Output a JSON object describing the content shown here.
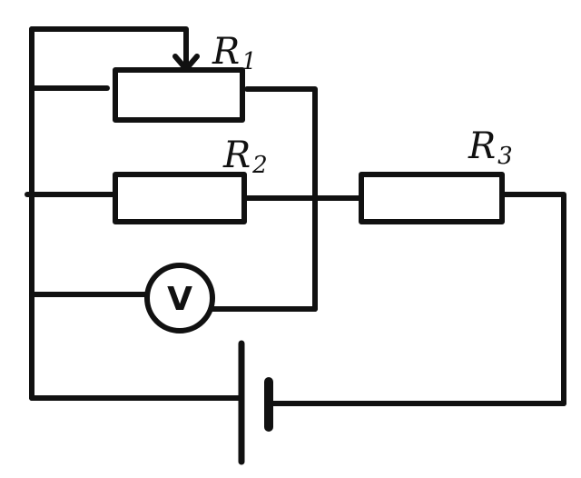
{
  "labels": {
    "r1": {
      "main": "R",
      "sub": "1"
    },
    "r2": {
      "main": "R",
      "sub": "2"
    },
    "r3": {
      "main": "R",
      "sub": "3"
    },
    "voltmeter": "V"
  }
}
